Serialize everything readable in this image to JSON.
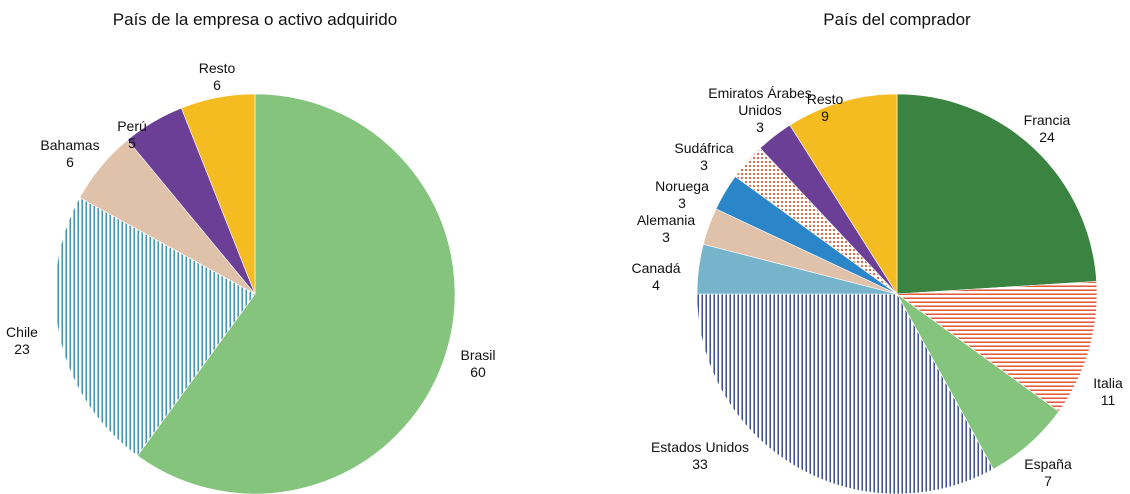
{
  "chart_data": [
    {
      "type": "pie",
      "title": "País de la empresa o activo adquirido",
      "categories": [
        "Brasil",
        "Chile",
        "Bahamas",
        "Perú",
        "Resto"
      ],
      "values": [
        60,
        23,
        6,
        5,
        6
      ],
      "colors": [
        "#84c47c",
        "#2f8bb0",
        "#e0c2ab",
        "#6b3f96",
        "#f5bc21"
      ],
      "patterns": [
        null,
        "vertical",
        null,
        null,
        null
      ]
    },
    {
      "type": "pie",
      "title": "País del comprador",
      "categories": [
        "Francia",
        "Italia",
        "España",
        "Estados Unidos",
        "Canadá",
        "Alemania",
        "Noruega",
        "Sudáfrica",
        "Emiratos Árabes Unidos",
        "Resto"
      ],
      "values": [
        24,
        11,
        7,
        33,
        4,
        3,
        3,
        3,
        3,
        9
      ],
      "colors": [
        "#3a8340",
        "#e04a2a",
        "#84c47c",
        "#2a3f8f",
        "#76b4cc",
        "#e0c2ab",
        "#2a86c8",
        "#e05a30",
        "#6b3f96",
        "#f5bc21"
      ],
      "patterns": [
        null,
        "horizontal",
        null,
        "vertical",
        null,
        null,
        null,
        "dots",
        null,
        null
      ]
    }
  ]
}
